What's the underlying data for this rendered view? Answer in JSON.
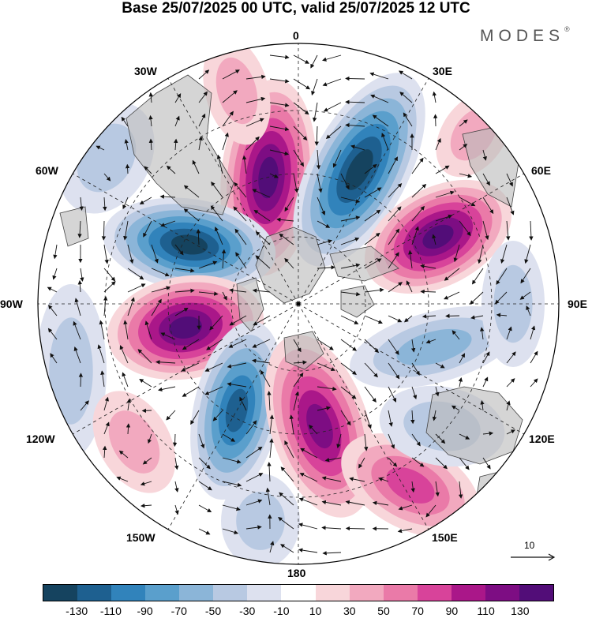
{
  "title": "Base 25/07/2025 00 UTC, valid 25/07/2025 12 UTC",
  "brand": "MODES",
  "brand_mark": "®",
  "longitude_labels": {
    "lon_0": "0",
    "lon_30e": "30E",
    "lon_60e": "60E",
    "lon_90e": "90E",
    "lon_120e": "120E",
    "lon_150e": "150E",
    "lon_180": "180",
    "lon_150w": "150W",
    "lon_120w": "120W",
    "lon_90w": "90W",
    "lon_60w": "60W",
    "lon_30w": "30W"
  },
  "reference_vector": {
    "label": "10",
    "magnitude": 10
  },
  "colorbar": {
    "colors": [
      "#15435f",
      "#1e6090",
      "#3183bb",
      "#5a9fcc",
      "#8bb5d8",
      "#b8c9e2",
      "#dde1ef",
      "#ffffff",
      "#f8d6da",
      "#f2a9bf",
      "#ea7aa8",
      "#d8439a",
      "#aa1789",
      "#7d0d83",
      "#520d78"
    ],
    "tick_labels": [
      "-130",
      "-110",
      "-90",
      "-70",
      "-50",
      "-30",
      "-10",
      "10",
      "30",
      "50",
      "70",
      "90",
      "110",
      "130"
    ]
  },
  "palette": {
    "land": "#b9b9b9",
    "coast": "#444444",
    "grid": "#222222"
  }
}
